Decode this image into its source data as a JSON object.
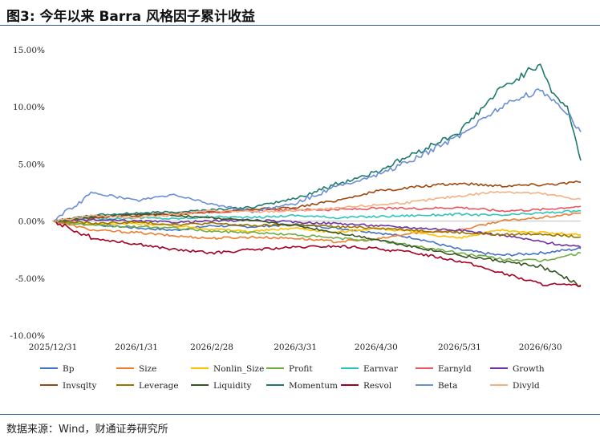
{
  "header": {
    "title": "图3: 今年以来 Barra 风格因子累计收益"
  },
  "footer": {
    "source": "数据来源：Wind，财通证券研究所"
  },
  "chart_data": {
    "type": "line",
    "title": "图3: 今年以来 Barra 风格因子累计收益",
    "xlabel": "",
    "ylabel": "",
    "x_ticks": [
      "2025/12/31",
      "2026/1/31",
      "2026/2/28",
      "2026/3/31",
      "2026/4/30",
      "2026/5/31",
      "2026/6/30"
    ],
    "y_ticks": [
      "15.00%",
      "10.00%",
      "5.00%",
      "0.00%",
      "-5.00%",
      "-10.00%"
    ],
    "ylim": [
      -10,
      15
    ],
    "x_range": [
      "2025/12/31",
      "2026/7/15"
    ],
    "grid": false,
    "legend_position": "bottom",
    "series": [
      {
        "name": "Bp",
        "color": "#4472c4",
        "points": [
          [
            "2025/12/31",
            0
          ],
          [
            "2026/1/15",
            -0.3
          ],
          [
            "2026/1/31",
            -0.6
          ],
          [
            "2026/2/14",
            -0.8
          ],
          [
            "2026/2/28",
            -0.4
          ],
          [
            "2026/3/15",
            -0.5
          ],
          [
            "2026/3/31",
            -0.3
          ],
          [
            "2026/4/15",
            -0.6
          ],
          [
            "2026/4/30",
            -1.0
          ],
          [
            "2026/5/15",
            -1.5
          ],
          [
            "2026/5/31",
            -2.5
          ],
          [
            "2026/6/15",
            -3.0
          ],
          [
            "2026/6/30",
            -2.8
          ],
          [
            "2026/7/15",
            -2.4
          ]
        ]
      },
      {
        "name": "Size",
        "color": "#ed7d31",
        "points": [
          [
            "2025/12/31",
            0
          ],
          [
            "2026/1/15",
            -0.8
          ],
          [
            "2026/1/31",
            -1.0
          ],
          [
            "2026/2/14",
            -1.3
          ],
          [
            "2026/2/28",
            -1.5
          ],
          [
            "2026/3/15",
            -1.4
          ],
          [
            "2026/3/31",
            -1.5
          ],
          [
            "2026/4/15",
            -1.8
          ],
          [
            "2026/4/30",
            -1.6
          ],
          [
            "2026/5/15",
            -1.0
          ],
          [
            "2026/5/31",
            -0.8
          ],
          [
            "2026/6/15",
            0.0
          ],
          [
            "2026/6/30",
            0.3
          ],
          [
            "2026/7/15",
            0.7
          ]
        ]
      },
      {
        "name": "Nonlin_Size",
        "color": "#ffc000",
        "points": [
          [
            "2025/12/31",
            0
          ],
          [
            "2026/1/15",
            -0.3
          ],
          [
            "2026/1/31",
            -0.2
          ],
          [
            "2026/2/14",
            -0.4
          ],
          [
            "2026/2/28",
            -0.7
          ],
          [
            "2026/3/15",
            -0.9
          ],
          [
            "2026/3/31",
            -0.6
          ],
          [
            "2026/4/15",
            -1.0
          ],
          [
            "2026/4/30",
            -0.6
          ],
          [
            "2026/5/15",
            -1.0
          ],
          [
            "2026/5/31",
            -1.5
          ],
          [
            "2026/6/15",
            -0.8
          ],
          [
            "2026/6/30",
            -1.0
          ],
          [
            "2026/7/15",
            -1.2
          ]
        ]
      },
      {
        "name": "Profit",
        "color": "#70ad47",
        "points": [
          [
            "2025/12/31",
            0
          ],
          [
            "2026/1/15",
            -0.4
          ],
          [
            "2026/1/31",
            -0.5
          ],
          [
            "2026/2/14",
            -0.6
          ],
          [
            "2026/2/28",
            -0.9
          ],
          [
            "2026/3/15",
            -1.0
          ],
          [
            "2026/3/31",
            -1.2
          ],
          [
            "2026/4/15",
            -1.5
          ],
          [
            "2026/4/30",
            -1.7
          ],
          [
            "2026/5/15",
            -2.2
          ],
          [
            "2026/5/31",
            -2.8
          ],
          [
            "2026/6/15",
            -3.3
          ],
          [
            "2026/6/30",
            -3.5
          ],
          [
            "2026/7/15",
            -2.8
          ]
        ]
      },
      {
        "name": "Earnvar",
        "color": "#2ec4b6",
        "points": [
          [
            "2025/12/31",
            0
          ],
          [
            "2026/1/15",
            0.2
          ],
          [
            "2026/1/31",
            0.3
          ],
          [
            "2026/2/14",
            0.2
          ],
          [
            "2026/2/28",
            0.4
          ],
          [
            "2026/3/15",
            0.3
          ],
          [
            "2026/3/31",
            0.5
          ],
          [
            "2026/4/15",
            0.3
          ],
          [
            "2026/4/30",
            0.4
          ],
          [
            "2026/5/15",
            0.5
          ],
          [
            "2026/5/31",
            0.6
          ],
          [
            "2026/6/15",
            0.5
          ],
          [
            "2026/6/30",
            0.7
          ],
          [
            "2026/7/15",
            0.9
          ]
        ]
      },
      {
        "name": "Earnyld",
        "color": "#e8565f",
        "points": [
          [
            "2025/12/31",
            0
          ],
          [
            "2026/1/15",
            0.4
          ],
          [
            "2026/1/31",
            0.6
          ],
          [
            "2026/2/14",
            0.7
          ],
          [
            "2026/2/28",
            0.8
          ],
          [
            "2026/3/15",
            0.9
          ],
          [
            "2026/3/31",
            1.0
          ],
          [
            "2026/4/15",
            1.0
          ],
          [
            "2026/4/30",
            1.1
          ],
          [
            "2026/5/15",
            1.1
          ],
          [
            "2026/5/31",
            1.2
          ],
          [
            "2026/6/15",
            0.9
          ],
          [
            "2026/6/30",
            1.0
          ],
          [
            "2026/7/15",
            1.3
          ]
        ]
      },
      {
        "name": "Growth",
        "color": "#7030a0",
        "points": [
          [
            "2025/12/31",
            0
          ],
          [
            "2026/1/15",
            0.1
          ],
          [
            "2026/1/31",
            0.0
          ],
          [
            "2026/2/14",
            -0.1
          ],
          [
            "2026/2/28",
            0.0
          ],
          [
            "2026/3/15",
            0.1
          ],
          [
            "2026/3/31",
            -0.1
          ],
          [
            "2026/4/15",
            -0.2
          ],
          [
            "2026/4/30",
            -0.4
          ],
          [
            "2026/5/15",
            -0.6
          ],
          [
            "2026/5/31",
            -0.8
          ],
          [
            "2026/6/15",
            -1.2
          ],
          [
            "2026/6/30",
            -1.8
          ],
          [
            "2026/7/15",
            -2.3
          ]
        ]
      },
      {
        "name": "Invsqlty",
        "color": "#9e480e",
        "points": [
          [
            "2025/12/31",
            0
          ],
          [
            "2026/1/15",
            0.3
          ],
          [
            "2026/1/31",
            0.5
          ],
          [
            "2026/2/14",
            0.6
          ],
          [
            "2026/2/28",
            0.8
          ],
          [
            "2026/3/15",
            1.0
          ],
          [
            "2026/3/31",
            1.2
          ],
          [
            "2026/4/15",
            1.8
          ],
          [
            "2026/4/30",
            2.6
          ],
          [
            "2026/5/15",
            3.0
          ],
          [
            "2026/5/31",
            3.3
          ],
          [
            "2026/6/15",
            3.1
          ],
          [
            "2026/6/30",
            3.2
          ],
          [
            "2026/7/15",
            3.4
          ]
        ]
      },
      {
        "name": "Leverage",
        "color": "#997300",
        "points": [
          [
            "2025/12/31",
            0
          ],
          [
            "2026/1/15",
            -0.2
          ],
          [
            "2026/1/31",
            -0.1
          ],
          [
            "2026/2/14",
            -0.3
          ],
          [
            "2026/2/28",
            -0.2
          ],
          [
            "2026/3/15",
            -0.4
          ],
          [
            "2026/3/31",
            -0.3
          ],
          [
            "2026/4/15",
            -0.5
          ],
          [
            "2026/4/30",
            -0.6
          ],
          [
            "2026/5/15",
            -0.8
          ],
          [
            "2026/5/31",
            -1.0
          ],
          [
            "2026/6/15",
            -1.2
          ],
          [
            "2026/6/30",
            -1.1
          ],
          [
            "2026/7/15",
            -1.4
          ]
        ]
      },
      {
        "name": "Liquidity",
        "color": "#375623",
        "points": [
          [
            "2025/12/31",
            0
          ],
          [
            "2026/1/15",
            0.4
          ],
          [
            "2026/1/31",
            0.6
          ],
          [
            "2026/2/14",
            0.5
          ],
          [
            "2026/2/28",
            0.3
          ],
          [
            "2026/3/15",
            0.0
          ],
          [
            "2026/3/31",
            -0.4
          ],
          [
            "2026/4/15",
            -1.0
          ],
          [
            "2026/4/30",
            -1.6
          ],
          [
            "2026/5/15",
            -2.3
          ],
          [
            "2026/5/31",
            -3.0
          ],
          [
            "2026/6/15",
            -3.5
          ],
          [
            "2026/6/30",
            -4.0
          ],
          [
            "2026/7/15",
            -5.6
          ]
        ]
      },
      {
        "name": "Momentum",
        "color": "#1f7a6e",
        "points": [
          [
            "2025/12/31",
            0
          ],
          [
            "2026/1/15",
            0.5
          ],
          [
            "2026/1/31",
            0.7
          ],
          [
            "2026/2/14",
            0.8
          ],
          [
            "2026/2/28",
            1.0
          ],
          [
            "2026/3/15",
            1.2
          ],
          [
            "2026/3/31",
            2.0
          ],
          [
            "2026/4/15",
            3.2
          ],
          [
            "2026/4/30",
            4.3
          ],
          [
            "2026/5/15",
            6.0
          ],
          [
            "2026/5/31",
            7.8
          ],
          [
            "2026/6/15",
            11.5
          ],
          [
            "2026/6/30",
            13.8
          ],
          [
            "2026/7/5",
            11.0
          ],
          [
            "2026/7/10",
            10.0
          ],
          [
            "2026/7/15",
            5.3
          ]
        ]
      },
      {
        "name": "Resvol",
        "color": "#a50021",
        "points": [
          [
            "2025/12/31",
            0
          ],
          [
            "2026/1/15",
            -1.5
          ],
          [
            "2026/1/31",
            -2.0
          ],
          [
            "2026/2/14",
            -2.5
          ],
          [
            "2026/2/28",
            -2.8
          ],
          [
            "2026/3/15",
            -2.5
          ],
          [
            "2026/3/31",
            -2.3
          ],
          [
            "2026/4/15",
            -2.2
          ],
          [
            "2026/4/30",
            -2.4
          ],
          [
            "2026/5/15",
            -2.8
          ],
          [
            "2026/5/31",
            -3.5
          ],
          [
            "2026/6/15",
            -4.5
          ],
          [
            "2026/6/30",
            -5.5
          ],
          [
            "2026/7/15",
            -5.7
          ]
        ]
      },
      {
        "name": "Beta",
        "color": "#6b8fd4",
        "points": [
          [
            "2025/12/31",
            0
          ],
          [
            "2026/1/15",
            2.5
          ],
          [
            "2026/1/31",
            1.8
          ],
          [
            "2026/2/14",
            2.3
          ],
          [
            "2026/2/28",
            1.5
          ],
          [
            "2026/3/15",
            0.8
          ],
          [
            "2026/3/31",
            1.6
          ],
          [
            "2026/4/15",
            3.0
          ],
          [
            "2026/4/30",
            4.0
          ],
          [
            "2026/5/15",
            5.5
          ],
          [
            "2026/5/31",
            7.5
          ],
          [
            "2026/6/15",
            10.0
          ],
          [
            "2026/6/30",
            11.5
          ],
          [
            "2026/7/5",
            10.5
          ],
          [
            "2026/7/10",
            9.5
          ],
          [
            "2026/7/15",
            7.8
          ]
        ]
      },
      {
        "name": "Divyld",
        "color": "#f4b183",
        "points": [
          [
            "2025/12/31",
            0
          ],
          [
            "2026/1/15",
            0.5
          ],
          [
            "2026/1/31",
            0.3
          ],
          [
            "2026/2/14",
            0.6
          ],
          [
            "2026/2/28",
            0.9
          ],
          [
            "2026/3/15",
            0.8
          ],
          [
            "2026/3/31",
            0.9
          ],
          [
            "2026/4/15",
            1.1
          ],
          [
            "2026/4/30",
            1.4
          ],
          [
            "2026/5/15",
            1.7
          ],
          [
            "2026/5/31",
            2.2
          ],
          [
            "2026/6/15",
            2.6
          ],
          [
            "2026/6/30",
            2.4
          ],
          [
            "2026/7/15",
            1.9
          ]
        ]
      }
    ]
  }
}
